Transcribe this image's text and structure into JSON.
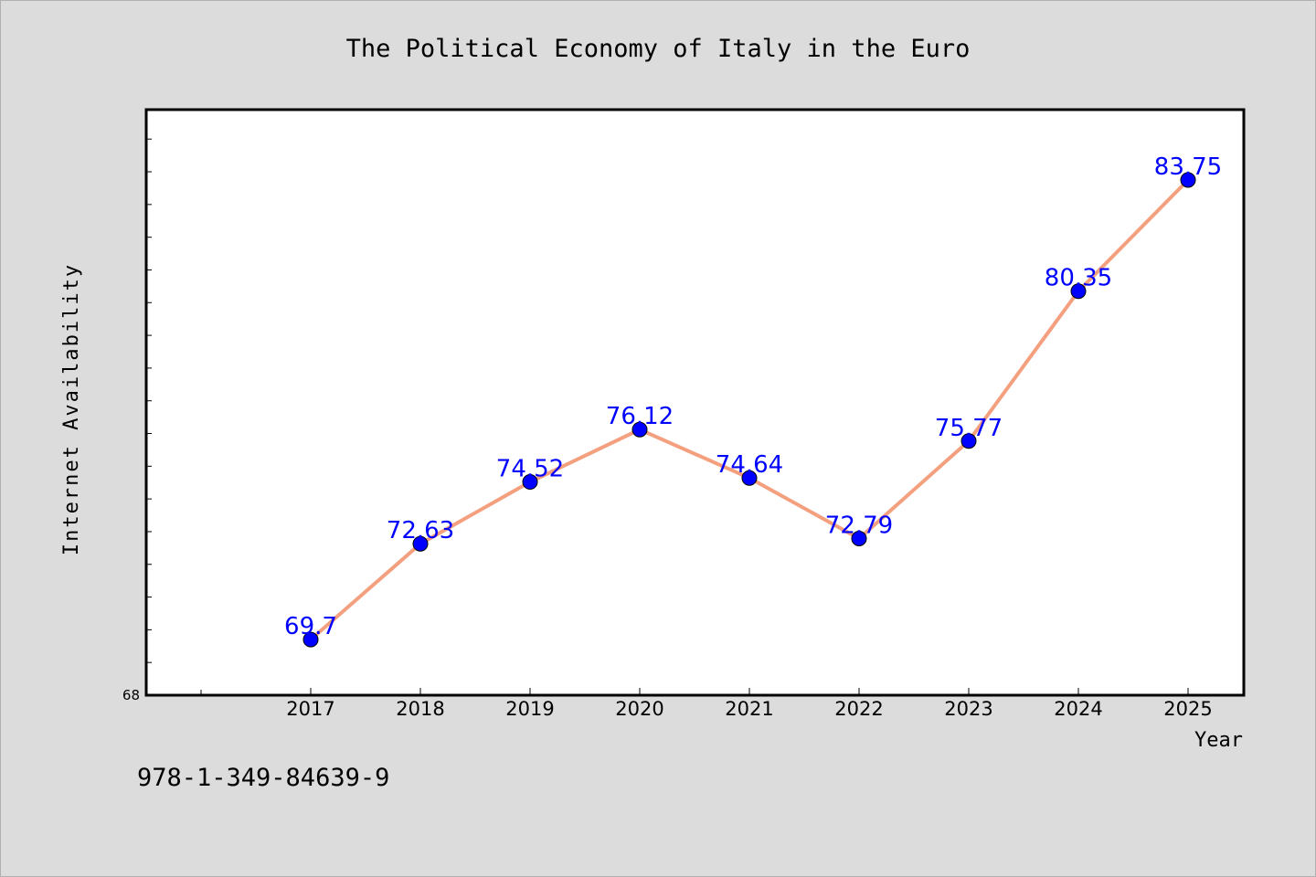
{
  "chart_data": {
    "type": "line",
    "title": "The Political Economy of Italy in the Euro",
    "xlabel": "Year",
    "ylabel": "Internet Availability",
    "categories": [
      "2017",
      "2018",
      "2019",
      "2020",
      "2021",
      "2022",
      "2023",
      "2024",
      "2025"
    ],
    "series": [
      {
        "values": [
          69.7,
          72.63,
          74.52,
          76.12,
          74.64,
          72.79,
          75.77,
          80.35,
          83.75
        ],
        "labels": [
          "69.7",
          "72.63",
          "74.52",
          "76.12",
          "74.64",
          "72.79",
          "75.77",
          "80.35",
          "83.75"
        ]
      }
    ],
    "ylim": [
      68,
      85.9
    ],
    "ytick_labels": [
      "68"
    ],
    "grid": false,
    "legend": "none",
    "colors": {
      "line": "#f4a07f",
      "marker": "#0000ff",
      "label": "#0000ff",
      "plot_background": "#ffffff",
      "figure_background": "#dcdcdc"
    }
  },
  "footer": {
    "isbn": "978-1-349-84639-9"
  }
}
